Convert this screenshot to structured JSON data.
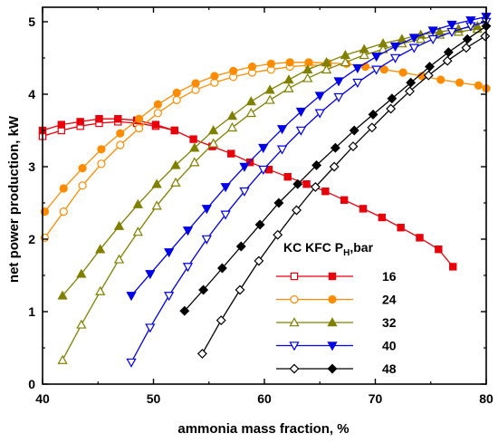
{
  "chart_data": {
    "type": "line",
    "title": "",
    "xlabel": "ammonia mass fraction, %",
    "ylabel": "net power production, kW",
    "xlim": [
      40,
      80
    ],
    "ylim": [
      0,
      5.2
    ],
    "xticks": [
      40,
      50,
      60,
      70,
      80
    ],
    "yticks": [
      0,
      1,
      2,
      3,
      4,
      5
    ],
    "grid": false,
    "legend": {
      "title_main": "KC KFC P",
      "title_sub": "H",
      "title_suffix": ",bar",
      "position": "lower-right",
      "open_label": "KC",
      "filled_label": "KFC"
    },
    "series": [
      {
        "name": "16",
        "color": "#e8000b",
        "marker": "square",
        "kc": {
          "x": [
            40,
            41.7,
            43.4,
            45.1,
            46.8,
            48.5,
            50.2,
            51.9
          ],
          "y": [
            3.42,
            3.5,
            3.56,
            3.6,
            3.62,
            3.6,
            3.56,
            3.5
          ]
        },
        "kfc": {
          "x": [
            40,
            41.7,
            43.4,
            45.1,
            46.8,
            48.5,
            50.2,
            51.9,
            53.6,
            55.3,
            57,
            58.7,
            60.4,
            62.1,
            63.8,
            65.5,
            67.2,
            68.9,
            70.6,
            72.3,
            74,
            75.7,
            77
          ],
          "y": [
            3.5,
            3.58,
            3.62,
            3.66,
            3.66,
            3.64,
            3.58,
            3.5,
            3.38,
            3.28,
            3.18,
            3.06,
            2.96,
            2.86,
            2.76,
            2.66,
            2.54,
            2.42,
            2.3,
            2.16,
            2.02,
            1.86,
            1.62
          ]
        }
      },
      {
        "name": "24",
        "color": "#ff8c00",
        "marker": "circle",
        "kc": {
          "x": [
            40.2,
            41.9,
            43.6,
            45.3,
            47,
            48.7,
            50.4,
            52.1,
            53.8,
            55.5,
            57.2,
            58.9,
            60.6,
            62.3,
            64,
            65.7
          ],
          "y": [
            2.02,
            2.38,
            2.74,
            3.04,
            3.3,
            3.53,
            3.74,
            3.92,
            4.06,
            4.16,
            4.24,
            4.3,
            4.34,
            4.38,
            4.4,
            4.4
          ]
        },
        "kfc": {
          "x": [
            40.2,
            41.9,
            43.6,
            45.3,
            47,
            48.7,
            50.4,
            52.1,
            53.8,
            55.5,
            57.2,
            58.9,
            60.6,
            62.3,
            64,
            65.7,
            67.4,
            69.1,
            70.8,
            72.5,
            74.2,
            75.9,
            77.6,
            79.3,
            80
          ],
          "y": [
            2.38,
            2.7,
            2.98,
            3.24,
            3.46,
            3.66,
            3.86,
            4.02,
            4.15,
            4.25,
            4.32,
            4.38,
            4.42,
            4.44,
            4.44,
            4.43,
            4.42,
            4.38,
            4.34,
            4.3,
            4.25,
            4.2,
            4.16,
            4.12,
            4.08
          ]
        }
      },
      {
        "name": "32",
        "color": "#808000",
        "marker": "triangle-up",
        "kc": {
          "x": [
            41.8,
            43.5,
            45.2,
            46.9,
            48.6,
            50.3,
            52,
            53.7,
            55.4,
            57.1,
            58.8,
            60.5,
            62.2,
            63.9,
            65.6,
            67.3,
            69,
            70.7,
            72.4,
            74.1,
            75.8,
            77.5,
            79.2
          ],
          "y": [
            0.33,
            0.82,
            1.28,
            1.72,
            2.1,
            2.46,
            2.78,
            3.06,
            3.32,
            3.54,
            3.74,
            3.92,
            4.08,
            4.22,
            4.34,
            4.44,
            4.54,
            4.62,
            4.7,
            4.76,
            4.82,
            4.86,
            4.9
          ]
        },
        "kfc": {
          "x": [
            41.8,
            43.5,
            45.2,
            46.9,
            48.6,
            50.3,
            52,
            53.7,
            55.4,
            57.1,
            58.8,
            60.5,
            62.2,
            63.9,
            65.6,
            67.3,
            69,
            70.7,
            72.4,
            74.1,
            75.8,
            77.5,
            79.2
          ],
          "y": [
            1.22,
            1.52,
            1.86,
            2.18,
            2.48,
            2.76,
            3.02,
            3.26,
            3.5,
            3.7,
            3.9,
            4.06,
            4.2,
            4.34,
            4.44,
            4.54,
            4.62,
            4.7,
            4.76,
            4.82,
            4.86,
            4.9,
            4.94
          ]
        }
      },
      {
        "name": "40",
        "color": "#0000e6",
        "marker": "triangle-down",
        "kc": {
          "x": [
            48,
            49.7,
            51.4,
            53.1,
            54.8,
            56.5,
            58.2,
            59.9,
            61.6,
            63.3,
            65,
            66.7,
            68.4,
            70.1,
            71.8,
            73.5,
            75.2,
            76.9,
            78.6,
            80
          ],
          "y": [
            0.3,
            0.78,
            1.22,
            1.62,
            2.0,
            2.34,
            2.66,
            2.96,
            3.24,
            3.5,
            3.74,
            3.96,
            4.16,
            4.34,
            4.5,
            4.64,
            4.76,
            4.86,
            4.94,
            5.0
          ]
        },
        "kfc": {
          "x": [
            48,
            49.7,
            51.4,
            53.1,
            54.8,
            56.5,
            58.2,
            59.9,
            61.6,
            63.3,
            65,
            66.7,
            68.4,
            70.1,
            71.8,
            73.5,
            75.2,
            76.9,
            78.6,
            80
          ],
          "y": [
            1.22,
            1.52,
            1.82,
            2.12,
            2.42,
            2.72,
            3.0,
            3.26,
            3.52,
            3.76,
            3.98,
            4.18,
            4.36,
            4.52,
            4.66,
            4.78,
            4.88,
            4.96,
            5.02,
            5.07
          ]
        }
      },
      {
        "name": "48",
        "color": "#000000",
        "marker": "diamond",
        "kc": {
          "x": [
            54.4,
            56.1,
            57.8,
            59.5,
            61.2,
            62.9,
            64.6,
            66.3,
            68,
            69.7,
            71.4,
            73.1,
            74.8,
            76.5,
            78.2,
            79.9
          ],
          "y": [
            0.42,
            0.88,
            1.3,
            1.7,
            2.06,
            2.4,
            2.72,
            3.0,
            3.28,
            3.54,
            3.8,
            4.04,
            4.26,
            4.46,
            4.64,
            4.8
          ]
        },
        "kfc": {
          "x": [
            52.8,
            54.5,
            56.2,
            57.9,
            59.6,
            61.3,
            63,
            64.7,
            66.4,
            68.1,
            69.8,
            71.5,
            73.2,
            74.9,
            76.6,
            78.3,
            80
          ],
          "y": [
            1.01,
            1.3,
            1.6,
            1.9,
            2.2,
            2.5,
            2.76,
            3.02,
            3.26,
            3.5,
            3.72,
            3.94,
            4.16,
            4.38,
            4.58,
            4.76,
            4.94
          ]
        }
      }
    ]
  }
}
